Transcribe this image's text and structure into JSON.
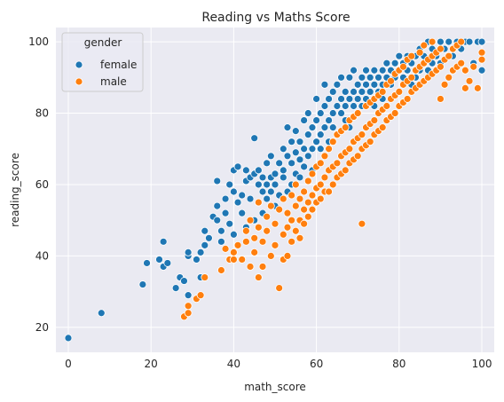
{
  "chart_data": {
    "type": "scatter",
    "title": "Reading vs Maths Score",
    "xlabel": "math_score",
    "ylabel": "reading_score",
    "xlim": [
      -3,
      103
    ],
    "ylim": [
      13,
      104
    ],
    "xticks": [
      0,
      20,
      40,
      60,
      80,
      100
    ],
    "yticks": [
      20,
      40,
      60,
      80,
      100
    ],
    "grid": true,
    "legend": {
      "title": "gender",
      "placement": "top-left"
    },
    "colors": {
      "female": "#1f77b4",
      "male": "#ff7f0e",
      "background": "#eaeaf2",
      "grid": "#ffffff"
    },
    "series": [
      {
        "name": "female",
        "color": "#1f77b4",
        "points": [
          [
            0,
            17
          ],
          [
            8,
            24
          ],
          [
            18,
            32
          ],
          [
            19,
            38
          ],
          [
            22,
            39
          ],
          [
            23,
            44
          ],
          [
            23,
            37
          ],
          [
            24,
            38
          ],
          [
            26,
            31
          ],
          [
            27,
            34
          ],
          [
            28,
            33
          ],
          [
            29,
            40
          ],
          [
            29,
            41
          ],
          [
            29,
            29
          ],
          [
            31,
            39
          ],
          [
            32,
            34
          ],
          [
            32,
            41
          ],
          [
            33,
            43
          ],
          [
            33,
            47
          ],
          [
            34,
            45
          ],
          [
            35,
            51
          ],
          [
            36,
            50
          ],
          [
            36,
            54
          ],
          [
            36,
            61
          ],
          [
            37,
            47
          ],
          [
            37,
            44
          ],
          [
            38,
            52
          ],
          [
            38,
            56
          ],
          [
            39,
            60
          ],
          [
            39,
            49
          ],
          [
            40,
            46
          ],
          [
            40,
            64
          ],
          [
            40,
            58
          ],
          [
            41,
            65
          ],
          [
            41,
            55
          ],
          [
            42,
            52
          ],
          [
            42,
            57
          ],
          [
            43,
            61
          ],
          [
            43,
            64
          ],
          [
            43,
            48
          ],
          [
            44,
            56
          ],
          [
            44,
            62
          ],
          [
            45,
            50
          ],
          [
            45,
            63
          ],
          [
            45,
            73
          ],
          [
            46,
            60
          ],
          [
            46,
            55
          ],
          [
            46,
            64
          ],
          [
            47,
            58
          ],
          [
            47,
            62
          ],
          [
            47,
            52
          ],
          [
            48,
            60
          ],
          [
            48,
            66
          ],
          [
            48,
            56
          ],
          [
            49,
            58
          ],
          [
            49,
            62
          ],
          [
            49,
            68
          ],
          [
            50,
            54
          ],
          [
            50,
            60
          ],
          [
            50,
            63
          ],
          [
            51,
            66
          ],
          [
            51,
            57
          ],
          [
            52,
            62
          ],
          [
            52,
            70
          ],
          [
            52,
            64
          ],
          [
            53,
            58
          ],
          [
            53,
            68
          ],
          [
            53,
            76
          ],
          [
            54,
            60
          ],
          [
            54,
            66
          ],
          [
            54,
            72
          ],
          [
            55,
            63
          ],
          [
            55,
            69
          ],
          [
            55,
            75
          ],
          [
            56,
            67
          ],
          [
            56,
            72
          ],
          [
            56,
            62
          ],
          [
            57,
            65
          ],
          [
            57,
            70
          ],
          [
            57,
            78
          ],
          [
            58,
            68
          ],
          [
            58,
            74
          ],
          [
            58,
            80
          ],
          [
            59,
            70
          ],
          [
            59,
            76
          ],
          [
            59,
            64
          ],
          [
            60,
            72
          ],
          [
            60,
            78
          ],
          [
            60,
            84
          ],
          [
            61,
            74
          ],
          [
            61,
            80
          ],
          [
            61,
            70
          ],
          [
            62,
            76
          ],
          [
            62,
            82
          ],
          [
            62,
            88
          ],
          [
            63,
            78
          ],
          [
            63,
            84
          ],
          [
            63,
            72
          ],
          [
            64,
            80
          ],
          [
            64,
            86
          ],
          [
            64,
            76
          ],
          [
            65,
            82
          ],
          [
            65,
            88
          ],
          [
            65,
            74
          ],
          [
            66,
            84
          ],
          [
            66,
            80
          ],
          [
            66,
            90
          ],
          [
            67,
            82
          ],
          [
            67,
            86
          ],
          [
            67,
            78
          ],
          [
            68,
            84
          ],
          [
            68,
            90
          ],
          [
            68,
            76
          ],
          [
            69,
            86
          ],
          [
            69,
            82
          ],
          [
            69,
            92
          ],
          [
            70,
            88
          ],
          [
            70,
            84
          ],
          [
            70,
            80
          ],
          [
            71,
            90
          ],
          [
            71,
            86
          ],
          [
            71,
            82
          ],
          [
            72,
            88
          ],
          [
            72,
            92
          ],
          [
            72,
            84
          ],
          [
            73,
            90
          ],
          [
            73,
            86
          ],
          [
            74,
            88
          ],
          [
            74,
            92
          ],
          [
            74,
            82
          ],
          [
            75,
            90
          ],
          [
            75,
            86
          ],
          [
            76,
            92
          ],
          [
            76,
            88
          ],
          [
            76,
            84
          ],
          [
            77,
            94
          ],
          [
            77,
            90
          ],
          [
            78,
            92
          ],
          [
            78,
            88
          ],
          [
            79,
            94
          ],
          [
            79,
            90
          ],
          [
            80,
            92
          ],
          [
            80,
            96
          ],
          [
            80,
            86
          ],
          [
            81,
            94
          ],
          [
            81,
            90
          ],
          [
            82,
            96
          ],
          [
            82,
            92
          ],
          [
            83,
            94
          ],
          [
            83,
            88
          ],
          [
            84,
            96
          ],
          [
            84,
            90
          ],
          [
            85,
            98
          ],
          [
            85,
            92
          ],
          [
            86,
            96
          ],
          [
            86,
            94
          ],
          [
            87,
            100
          ],
          [
            87,
            92
          ],
          [
            88,
            98
          ],
          [
            88,
            94
          ],
          [
            89,
            96
          ],
          [
            90,
            100
          ],
          [
            90,
            94
          ],
          [
            91,
            98
          ],
          [
            92,
            100
          ],
          [
            93,
            96
          ],
          [
            94,
            100
          ],
          [
            95,
            98
          ],
          [
            96,
            100
          ],
          [
            97,
            100
          ],
          [
            98,
            94
          ],
          [
            99,
            100
          ],
          [
            100,
            92
          ],
          [
            100,
            100
          ]
        ]
      },
      {
        "name": "male",
        "color": "#ff7f0e",
        "points": [
          [
            28,
            23
          ],
          [
            29,
            24
          ],
          [
            29,
            26
          ],
          [
            31,
            28
          ],
          [
            32,
            29
          ],
          [
            33,
            34
          ],
          [
            37,
            36
          ],
          [
            38,
            42
          ],
          [
            39,
            39
          ],
          [
            40,
            41
          ],
          [
            40,
            39
          ],
          [
            41,
            43
          ],
          [
            42,
            39
          ],
          [
            43,
            47
          ],
          [
            43,
            44
          ],
          [
            44,
            37
          ],
          [
            44,
            50
          ],
          [
            45,
            41
          ],
          [
            45,
            45
          ],
          [
            46,
            34
          ],
          [
            46,
            48
          ],
          [
            46,
            55
          ],
          [
            47,
            37
          ],
          [
            47,
            44
          ],
          [
            48,
            51
          ],
          [
            48,
            47
          ],
          [
            49,
            40
          ],
          [
            49,
            54
          ],
          [
            50,
            43
          ],
          [
            50,
            49
          ],
          [
            51,
            31
          ],
          [
            51,
            53
          ],
          [
            52,
            46
          ],
          [
            52,
            39
          ],
          [
            52,
            56
          ],
          [
            53,
            40
          ],
          [
            53,
            48
          ],
          [
            53,
            52
          ],
          [
            54,
            44
          ],
          [
            54,
            50
          ],
          [
            54,
            57
          ],
          [
            55,
            47
          ],
          [
            55,
            54
          ],
          [
            55,
            60
          ],
          [
            56,
            50
          ],
          [
            56,
            56
          ],
          [
            56,
            45
          ],
          [
            57,
            53
          ],
          [
            57,
            58
          ],
          [
            57,
            49
          ],
          [
            58,
            55
          ],
          [
            58,
            61
          ],
          [
            58,
            51
          ],
          [
            59,
            57
          ],
          [
            59,
            63
          ],
          [
            59,
            53
          ],
          [
            60,
            59
          ],
          [
            60,
            65
          ],
          [
            60,
            55
          ],
          [
            61,
            60
          ],
          [
            61,
            66
          ],
          [
            61,
            56
          ],
          [
            62,
            62
          ],
          [
            62,
            68
          ],
          [
            62,
            58
          ],
          [
            63,
            64
          ],
          [
            63,
            58
          ],
          [
            63,
            70
          ],
          [
            64,
            65
          ],
          [
            64,
            60
          ],
          [
            64,
            72
          ],
          [
            65,
            66
          ],
          [
            65,
            62
          ],
          [
            65,
            74
          ],
          [
            66,
            68
          ],
          [
            66,
            63
          ],
          [
            66,
            75
          ],
          [
            67,
            69
          ],
          [
            67,
            64
          ],
          [
            67,
            76
          ],
          [
            68,
            70
          ],
          [
            68,
            66
          ],
          [
            68,
            78
          ],
          [
            69,
            72
          ],
          [
            69,
            67
          ],
          [
            69,
            79
          ],
          [
            70,
            73
          ],
          [
            70,
            68
          ],
          [
            70,
            80
          ],
          [
            71,
            74
          ],
          [
            71,
            70
          ],
          [
            71,
            49
          ],
          [
            72,
            76
          ],
          [
            72,
            71
          ],
          [
            72,
            82
          ],
          [
            73,
            77
          ],
          [
            73,
            72
          ],
          [
            73,
            83
          ],
          [
            74,
            78
          ],
          [
            74,
            74
          ],
          [
            74,
            84
          ],
          [
            75,
            80
          ],
          [
            75,
            75
          ],
          [
            75,
            85
          ],
          [
            76,
            81
          ],
          [
            76,
            76
          ],
          [
            76,
            86
          ],
          [
            77,
            82
          ],
          [
            77,
            78
          ],
          [
            77,
            88
          ],
          [
            78,
            84
          ],
          [
            78,
            79
          ],
          [
            78,
            89
          ],
          [
            79,
            85
          ],
          [
            79,
            80
          ],
          [
            79,
            91
          ],
          [
            80,
            86
          ],
          [
            80,
            82
          ],
          [
            80,
            92
          ],
          [
            81,
            88
          ],
          [
            81,
            83
          ],
          [
            81,
            93
          ],
          [
            82,
            89
          ],
          [
            82,
            84
          ],
          [
            82,
            95
          ],
          [
            83,
            90
          ],
          [
            83,
            86
          ],
          [
            83,
            96
          ],
          [
            84,
            92
          ],
          [
            84,
            87
          ],
          [
            85,
            93
          ],
          [
            85,
            88
          ],
          [
            85,
            97
          ],
          [
            86,
            94
          ],
          [
            86,
            89
          ],
          [
            86,
            99
          ],
          [
            87,
            95
          ],
          [
            87,
            90
          ],
          [
            88,
            96
          ],
          [
            88,
            91
          ],
          [
            88,
            100
          ],
          [
            89,
            97
          ],
          [
            89,
            92
          ],
          [
            90,
            98
          ],
          [
            90,
            93
          ],
          [
            90,
            84
          ],
          [
            91,
            95
          ],
          [
            91,
            88
          ],
          [
            92,
            96
          ],
          [
            92,
            90
          ],
          [
            93,
            98
          ],
          [
            93,
            92
          ],
          [
            94,
            99
          ],
          [
            94,
            93
          ],
          [
            95,
            100
          ],
          [
            95,
            94
          ],
          [
            96,
            87
          ],
          [
            96,
            92
          ],
          [
            97,
            89
          ],
          [
            98,
            93
          ],
          [
            99,
            87
          ],
          [
            100,
            97
          ],
          [
            100,
            95
          ]
        ]
      }
    ]
  }
}
